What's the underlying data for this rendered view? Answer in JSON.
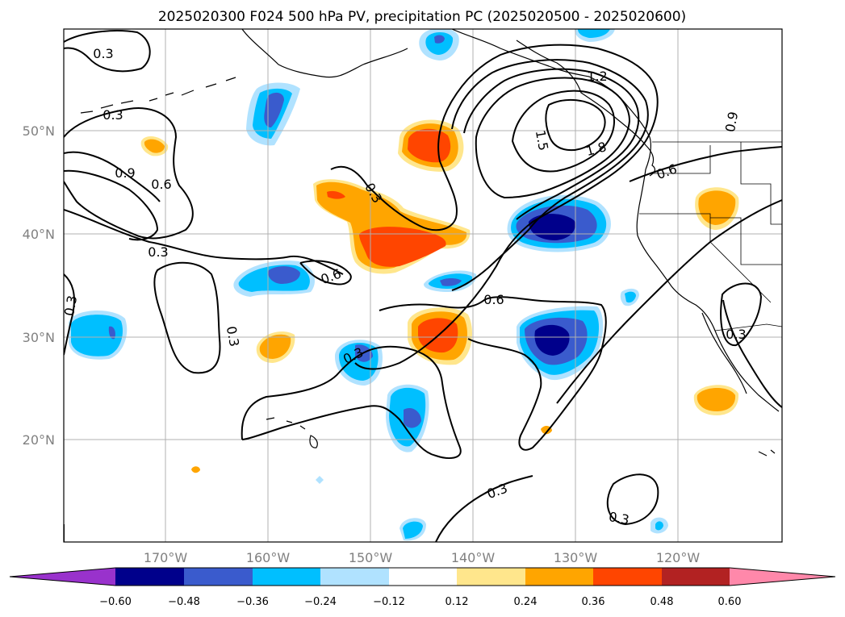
{
  "title": "2025020300 F024 500 hPa PV, precipitation PC (2025020500 - 2025020600)",
  "axes": {
    "lon_labels": [
      "170°W",
      "160°W",
      "150°W",
      "140°W",
      "130°W",
      "120°W"
    ],
    "lat_labels": [
      "50°N",
      "40°N",
      "30°N",
      "20°N"
    ]
  },
  "colorbar": {
    "ticks": [
      "−0.60",
      "−0.48",
      "−0.36",
      "−0.24",
      "−0.12",
      "0.12",
      "0.24",
      "0.36",
      "0.48",
      "0.60"
    ],
    "colors": {
      "below": "#9932cc",
      "c1": "#00008b",
      "c2": "#3a5bcd",
      "c3": "#00bfff",
      "c4": "#b0e2ff",
      "c5": "#ffffff",
      "c6": "#ffe68c",
      "c7": "#ffa500",
      "c8": "#ff4500",
      "c9": "#b22222",
      "above": "#ff88aa"
    }
  },
  "contour_labels": [
    "0.3",
    "0.3",
    "0.9",
    "0.6",
    "0.3",
    "0.3",
    "0.3",
    "0.3",
    "0.6",
    "0.6",
    "0.3",
    "0.3",
    "0.3",
    "1.2",
    "1.5",
    "1.8",
    "0.6",
    "0.9",
    "0.3"
  ]
}
